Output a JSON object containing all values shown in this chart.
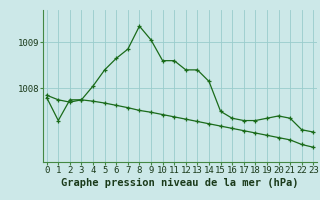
{
  "line1": [
    1007.8,
    1007.3,
    1007.75,
    1007.75,
    1008.05,
    1008.4,
    1008.65,
    1008.85,
    1009.35,
    1009.05,
    1008.6,
    1008.6,
    1008.4,
    1008.4,
    1008.15,
    1007.5,
    1007.35,
    1007.3,
    1007.3,
    1007.35,
    1007.4,
    1007.35,
    1007.1,
    1007.05
  ],
  "line2": [
    1007.85,
    1007.75,
    1007.7,
    1007.75,
    1007.72,
    1007.68,
    1007.63,
    1007.58,
    1007.52,
    1007.48,
    1007.43,
    1007.38,
    1007.33,
    1007.28,
    1007.23,
    1007.18,
    1007.13,
    1007.08,
    1007.03,
    1006.98,
    1006.93,
    1006.88,
    1006.78,
    1006.72
  ],
  "x": [
    0,
    1,
    2,
    3,
    4,
    5,
    6,
    7,
    8,
    9,
    10,
    11,
    12,
    13,
    14,
    15,
    16,
    17,
    18,
    19,
    20,
    21,
    22,
    23
  ],
  "ytick_positions": [
    1008,
    1009
  ],
  "ytick_labels": [
    "1008",
    "1009"
  ],
  "ylim": [
    1006.4,
    1009.7
  ],
  "xlim": [
    -0.3,
    23.3
  ],
  "line_color": "#1a6b1a",
  "bg_color": "#cce8e8",
  "grid_color": "#99cccc",
  "xlabel": "Graphe pression niveau de la mer (hPa)",
  "xlabel_fontsize": 7.5,
  "tick_fontsize": 6.5,
  "marker": "+"
}
